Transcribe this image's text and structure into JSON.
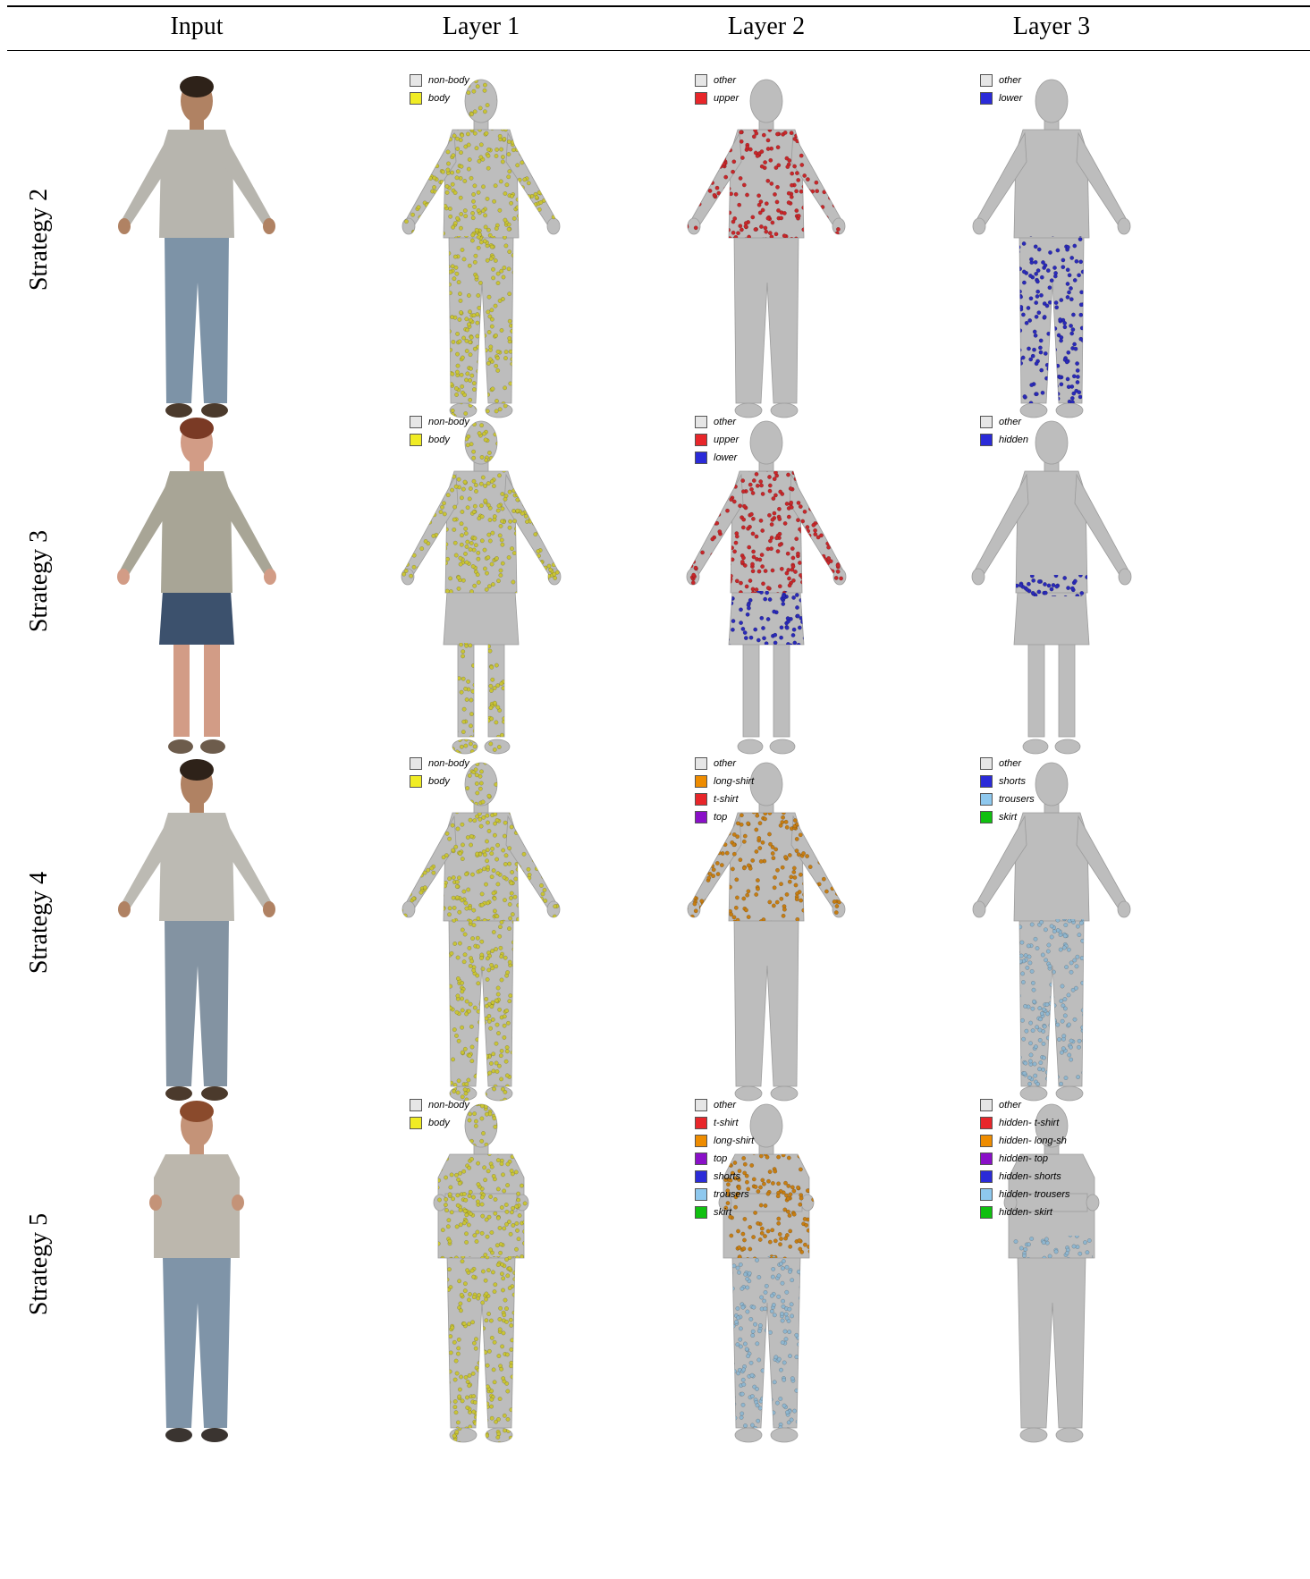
{
  "columns": [
    "Input",
    "Layer 1",
    "Layer 2",
    "Layer 3"
  ],
  "rows": [
    {
      "label": "Strategy 2",
      "figure": "standing",
      "input": {
        "skin": "#b08263",
        "hair": "#2e2219",
        "top": "#b7b5ae",
        "bottom": "#7d93a7",
        "shoes": "#4b3a2c"
      },
      "layers": [
        {
          "legend": [
            {
              "label": "non-body",
              "color": "#e6e6e6"
            },
            {
              "label": "body",
              "color": "#f0ec24"
            }
          ],
          "dots": {
            "head": "#c9c436",
            "top": "#c9c436",
            "bottom": "#c9c436",
            "feet": "#c9c436"
          }
        },
        {
          "legend": [
            {
              "label": "other",
              "color": "#e6e6e6"
            },
            {
              "label": "upper",
              "color": "#e8262a"
            }
          ],
          "dots": {
            "top": "#c7272a"
          }
        },
        {
          "legend": [
            {
              "label": "other",
              "color": "#e6e6e6"
            },
            {
              "label": "lower",
              "color": "#2b2bd8"
            }
          ],
          "dots": {
            "bottom": "#2a2ab8"
          }
        }
      ]
    },
    {
      "label": "Strategy 3",
      "figure": "skirt",
      "input": {
        "skin": "#d29c86",
        "hair": "#7a3a25",
        "top": "#a8a596",
        "bottom": "#3c516d",
        "shoes": "#6d5c4c"
      },
      "layers": [
        {
          "legend": [
            {
              "label": "non-body",
              "color": "#e6e6e6"
            },
            {
              "label": "body",
              "color": "#f0ec24"
            }
          ],
          "dots": {
            "head": "#c9c436",
            "top": "#c9c436",
            "legs": "#c9c436",
            "feet": "#c9c436"
          }
        },
        {
          "legend": [
            {
              "label": "other",
              "color": "#e6e6e6"
            },
            {
              "label": "upper",
              "color": "#e8262a"
            },
            {
              "label": "lower",
              "color": "#2b2bd8"
            }
          ],
          "dots": {
            "top": "#c7272a",
            "bottom": "#2a2ab8"
          }
        },
        {
          "legend": [
            {
              "label": "other",
              "color": "#e6e6e6"
            },
            {
              "label": "hidden",
              "color": "#2b2bd8"
            }
          ],
          "dots": {
            "hem": "#2a2ab8"
          }
        }
      ]
    },
    {
      "label": "Strategy 4",
      "figure": "standing",
      "input": {
        "skin": "#b08263",
        "hair": "#2e2219",
        "top": "#bcbab3",
        "bottom": "#8393a2",
        "shoes": "#4b3a2c"
      },
      "layers": [
        {
          "legend": [
            {
              "label": "non-body",
              "color": "#e6e6e6"
            },
            {
              "label": "body",
              "color": "#f0ec24"
            }
          ],
          "dots": {
            "head": "#c9c436",
            "top": "#c9c436",
            "bottom": "#c9c436",
            "feet": "#c9c436"
          }
        },
        {
          "legend": [
            {
              "label": "other",
              "color": "#e6e6e6"
            },
            {
              "label": "long-shirt",
              "color": "#ee8c00"
            },
            {
              "label": "t-shirt",
              "color": "#e8262a"
            },
            {
              "label": "top",
              "color": "#8a10c8"
            }
          ],
          "dots": {
            "top": "#c67d12"
          }
        },
        {
          "legend": [
            {
              "label": "other",
              "color": "#e6e6e6"
            },
            {
              "label": "shorts",
              "color": "#2b2bd8"
            },
            {
              "label": "trousers",
              "color": "#8ec8ee"
            },
            {
              "label": "skirt",
              "color": "#10c010"
            }
          ],
          "dots": {
            "bottom": "#8fb6cf"
          }
        }
      ]
    },
    {
      "label": "Strategy 5",
      "figure": "crossed",
      "input": {
        "skin": "#c49378",
        "hair": "#8a4a2c",
        "top": "#bcb7ad",
        "bottom": "#7f94a8",
        "shoes": "#3a3430"
      },
      "layers": [
        {
          "legend": [
            {
              "label": "non-body",
              "color": "#e6e6e6"
            },
            {
              "label": "body",
              "color": "#f0ec24"
            }
          ],
          "dots": {
            "head": "#c9c436",
            "top": "#c9c436",
            "bottom": "#c9c436",
            "feet": "#c9c436"
          }
        },
        {
          "legend": [
            {
              "label": "other",
              "color": "#e6e6e6"
            },
            {
              "label": "t-shirt",
              "color": "#e8262a"
            },
            {
              "label": "long-shirt",
              "color": "#ee8c00"
            },
            {
              "label": "top",
              "color": "#8a10c8"
            },
            {
              "label": "shorts",
              "color": "#2b2bd8"
            },
            {
              "label": "trousers",
              "color": "#8ec8ee"
            },
            {
              "label": "skirt",
              "color": "#10c010"
            }
          ],
          "dots": {
            "top": "#c67d12",
            "bottom": "#8fb6cf"
          }
        },
        {
          "legend": [
            {
              "label": "other",
              "color": "#e6e6e6"
            },
            {
              "label": "hidden- t-shirt",
              "color": "#e8262a"
            },
            {
              "label": "hidden- long-sh",
              "color": "#ee8c00"
            },
            {
              "label": "hidden- top",
              "color": "#8a10c8"
            },
            {
              "label": "hidden- shorts",
              "color": "#2b2bd8"
            },
            {
              "label": "hidden- trousers",
              "color": "#8ec8ee"
            },
            {
              "label": "hidden- skirt",
              "color": "#10c010"
            }
          ],
          "dots": {
            "hem": "#8fb6cf"
          }
        }
      ]
    }
  ]
}
